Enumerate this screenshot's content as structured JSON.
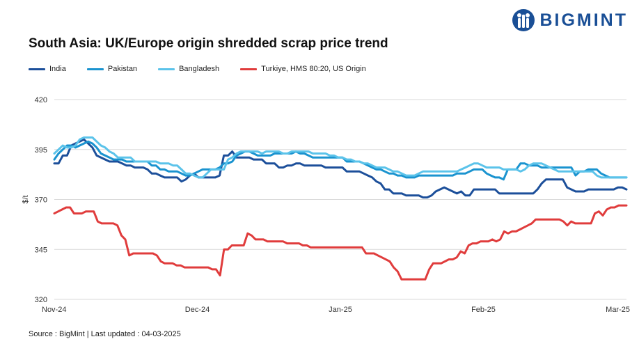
{
  "brand": {
    "name": "BIGMINT",
    "color": "#1a4f96"
  },
  "footer": {
    "source": "Source : BigMint | Last updated : 04-03-2025"
  },
  "chart_data": {
    "type": "line",
    "title": "South Asia: UK/Europe origin shredded scrap price trend",
    "xlabel": "",
    "ylabel": "$/t",
    "ylim": [
      320,
      420
    ],
    "yticks": [
      "320",
      "345",
      "370",
      "395",
      "420"
    ],
    "xticks": [
      "Nov-24",
      "Dec-24",
      "Jan-25",
      "Feb-25",
      "Mar-25"
    ],
    "grid": "horizontal",
    "legend_position": "top",
    "series": [
      {
        "name": "India",
        "color": "#1c4f9a",
        "values": [
          388,
          388,
          392,
          392,
          397,
          398,
          399,
          400,
          398,
          396,
          392,
          391,
          390,
          389,
          389,
          389,
          388,
          387,
          387,
          386,
          386,
          386,
          385,
          383,
          383,
          382,
          381,
          381,
          381,
          381,
          379,
          380,
          382,
          383,
          381,
          381,
          381,
          381,
          381,
          382,
          392,
          392,
          394,
          391,
          391,
          391,
          391,
          390,
          390,
          390,
          388,
          388,
          388,
          386,
          386,
          387,
          387,
          388,
          388,
          387,
          387,
          387,
          387,
          387,
          386,
          386,
          386,
          386,
          386,
          384,
          384,
          384,
          384,
          383,
          382,
          381,
          379,
          378,
          375,
          375,
          373,
          373,
          373,
          372,
          372,
          372,
          372,
          371,
          371,
          372,
          374,
          375,
          376,
          375,
          374,
          373,
          374,
          372,
          372,
          375,
          375,
          375,
          375,
          375,
          375,
          373,
          373,
          373,
          373,
          373,
          373,
          373,
          373,
          373,
          375,
          378,
          380,
          380,
          380,
          380,
          380,
          376,
          375,
          374,
          374,
          374,
          375,
          375,
          375,
          375,
          375,
          375,
          375,
          376,
          376,
          375
        ]
      },
      {
        "name": "Pakistan",
        "color": "#1a93cf",
        "values": [
          390,
          393,
          395,
          397,
          397,
          396,
          397,
          398,
          399,
          398,
          396,
          393,
          392,
          391,
          390,
          390,
          390,
          389,
          389,
          389,
          389,
          389,
          389,
          387,
          387,
          385,
          385,
          384,
          384,
          384,
          383,
          382,
          382,
          383,
          384,
          385,
          385,
          385,
          385,
          386,
          388,
          388,
          389,
          392,
          393,
          394,
          394,
          393,
          392,
          392,
          392,
          392,
          393,
          393,
          393,
          393,
          393,
          394,
          393,
          393,
          392,
          391,
          391,
          391,
          391,
          391,
          391,
          391,
          391,
          389,
          389,
          389,
          389,
          388,
          387,
          386,
          385,
          385,
          384,
          383,
          383,
          382,
          382,
          381,
          381,
          381,
          382,
          382,
          382,
          382,
          382,
          382,
          382,
          382,
          382,
          383,
          383,
          383,
          384,
          385,
          385,
          385,
          383,
          382,
          381,
          381,
          380,
          385,
          385,
          385,
          388,
          388,
          387,
          387,
          387,
          386,
          386,
          386,
          386,
          386,
          386,
          386,
          386,
          382,
          384,
          384,
          385,
          385,
          385,
          383,
          382,
          381,
          381,
          381,
          381,
          381
        ]
      },
      {
        "name": "Bangladesh",
        "color": "#5bc3ea",
        "values": [
          393,
          395,
          397,
          396,
          396,
          397,
          400,
          401,
          401,
          401,
          399,
          397,
          396,
          394,
          393,
          391,
          391,
          391,
          391,
          389,
          389,
          389,
          389,
          389,
          389,
          388,
          388,
          388,
          387,
          387,
          385,
          383,
          383,
          382,
          381,
          381,
          383,
          385,
          385,
          385,
          385,
          390,
          391,
          393,
          394,
          394,
          394,
          394,
          394,
          393,
          394,
          394,
          394,
          394,
          393,
          393,
          394,
          394,
          394,
          394,
          394,
          393,
          393,
          393,
          393,
          392,
          392,
          391,
          391,
          390,
          390,
          389,
          389,
          388,
          388,
          387,
          386,
          386,
          386,
          385,
          384,
          384,
          383,
          382,
          382,
          382,
          383,
          384,
          384,
          384,
          384,
          384,
          384,
          384,
          384,
          384,
          385,
          386,
          387,
          388,
          388,
          387,
          386,
          386,
          386,
          386,
          385,
          385,
          385,
          385,
          384,
          385,
          387,
          388,
          388,
          388,
          387,
          386,
          385,
          384,
          384,
          384,
          384,
          384,
          384,
          384,
          384,
          384,
          382,
          381,
          381,
          381,
          381,
          381,
          381,
          381
        ]
      },
      {
        "name": "Turkiye, HMS 80:20, US Origin",
        "color": "#e03c3c",
        "values": [
          363,
          364,
          365,
          366,
          366,
          363,
          363,
          363,
          364,
          364,
          364,
          359,
          358,
          358,
          358,
          358,
          357,
          352,
          350,
          342,
          343,
          343,
          343,
          343,
          343,
          343,
          342,
          339,
          338,
          338,
          338,
          337,
          337,
          336,
          336,
          336,
          336,
          336,
          336,
          336,
          335,
          335,
          332,
          345,
          345,
          347,
          347,
          347,
          347,
          353,
          352,
          350,
          350,
          350,
          349,
          349,
          349,
          349,
          349,
          348,
          348,
          348,
          348,
          347,
          347,
          346,
          346,
          346,
          346,
          346,
          346,
          346,
          346,
          346,
          346,
          346,
          346,
          346,
          346,
          343,
          343,
          343,
          342,
          341,
          340,
          339,
          336,
          334,
          330,
          330,
          330,
          330,
          330,
          330,
          330,
          335,
          338,
          338,
          338,
          339,
          340,
          340,
          341,
          344,
          343,
          347,
          348,
          348,
          349,
          349,
          349,
          350,
          349,
          350,
          354,
          353,
          354,
          354,
          355,
          356,
          357,
          358,
          360,
          360,
          360,
          360,
          360,
          360,
          360,
          359,
          357,
          359,
          358,
          358,
          358,
          358,
          358,
          363,
          364,
          362,
          365,
          366,
          366,
          367,
          367,
          367
        ]
      }
    ]
  }
}
